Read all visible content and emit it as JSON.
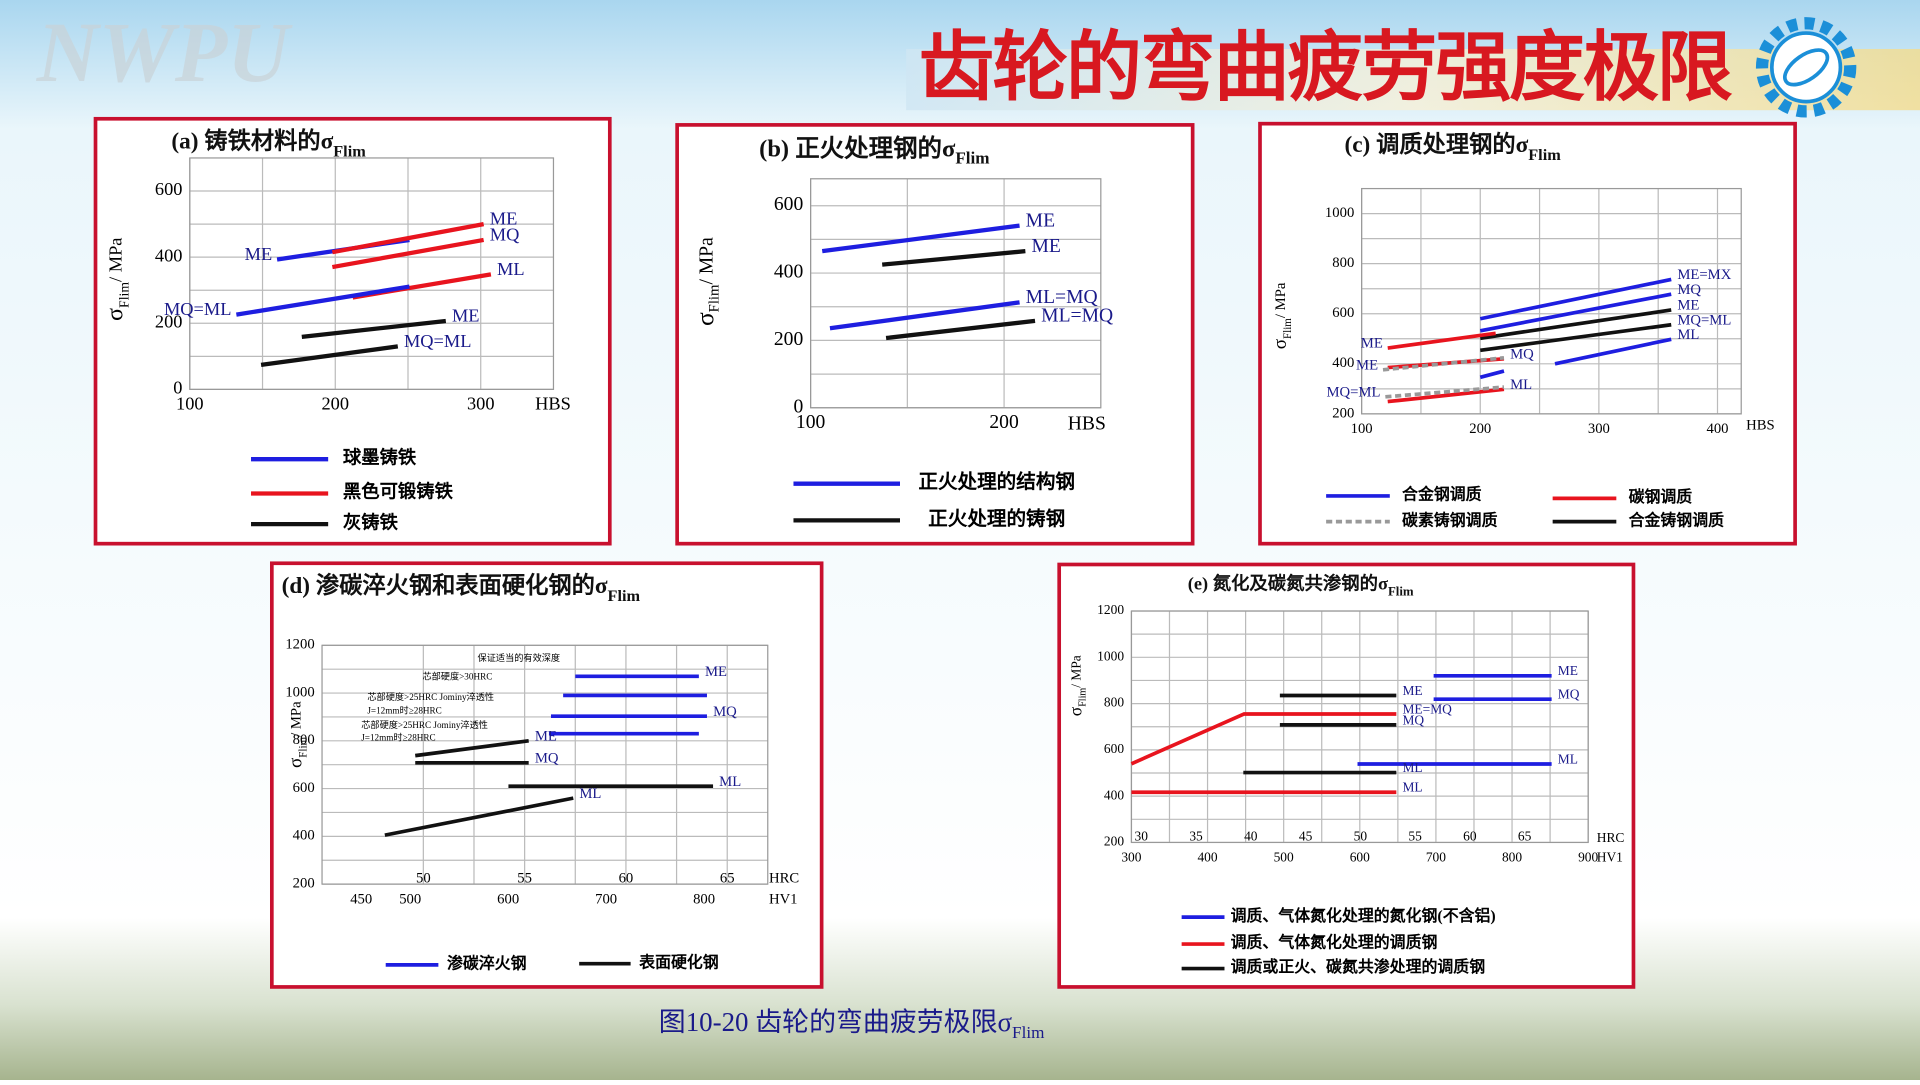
{
  "header": {
    "watermark": "NWPU",
    "title": "齿轮的弯曲疲劳强度极限"
  },
  "caption": {
    "text": "图10-20 齿轮的弯曲疲劳极限σ",
    "sub": "Flim"
  },
  "chart_data": [
    {
      "type": "line",
      "title": "(a)  铸铁材料的σ",
      "title_sub": "Flim",
      "ylabel": "σ",
      "ylabel_sub": "Flim",
      "ylabel_unit": "/ MPa",
      "xlabel": "HBS",
      "xlim": [
        100,
        350
      ],
      "xticks": [
        100,
        200,
        300
      ],
      "ylim": [
        0,
        700
      ],
      "yticks": [
        0,
        200,
        400,
        600
      ],
      "lines": [
        {
          "label": "ME",
          "color": "#1e1ee0",
          "x": [
            160,
            251
          ],
          "values": [
            393,
            452
          ],
          "label_at": "start"
        },
        {
          "label": "ME",
          "color": "#e8141e",
          "x": [
            198,
            302
          ],
          "values": [
            415,
            500
          ]
        },
        {
          "label": "MQ",
          "color": "#e8141e",
          "x": [
            198,
            302
          ],
          "values": [
            370,
            452
          ]
        },
        {
          "label": "ML",
          "color": "#e8141e",
          "x": [
            212,
            307
          ],
          "values": [
            278,
            348
          ]
        },
        {
          "label": "MQ=ML",
          "color": "#1e1ee0",
          "x": [
            132,
            251
          ],
          "values": [
            226,
            311
          ],
          "label_at": "start"
        },
        {
          "label": "ME",
          "color": "#111111",
          "x": [
            177,
            276
          ],
          "values": [
            159,
            207
          ]
        },
        {
          "label": "MQ=ML",
          "color": "#111111",
          "x": [
            149,
            243
          ],
          "values": [
            74,
            130
          ]
        }
      ],
      "legend": [
        {
          "name": "球墨铸铁",
          "color": "#1e1ee0"
        },
        {
          "name": "黑色可锻铸铁",
          "color": "#e8141e"
        },
        {
          "name": "灰铸铁",
          "color": "#111111"
        }
      ]
    },
    {
      "type": "line",
      "title": "(b) 正火处理钢的σ",
      "title_sub": "Flim",
      "ylabel": "σ",
      "ylabel_sub": "Flim",
      "ylabel_unit": "/ MPa",
      "xlabel": "HBS",
      "xlim": [
        100,
        250
      ],
      "xticks": [
        100,
        200
      ],
      "ylim": [
        0,
        680
      ],
      "yticks": [
        0,
        200,
        400,
        600
      ],
      "lines": [
        {
          "label": "ME",
          "color": "#1e1ee0",
          "x": [
            106,
            208
          ],
          "values": [
            465,
            541
          ]
        },
        {
          "label": "ME",
          "color": "#111111",
          "x": [
            137,
            211
          ],
          "values": [
            425,
            465
          ]
        },
        {
          "label": "ML=MQ",
          "color": "#1e1ee0",
          "x": [
            110,
            208
          ],
          "values": [
            236,
            313
          ]
        },
        {
          "label": "ML=MQ",
          "color": "#111111",
          "x": [
            139,
            216
          ],
          "values": [
            207,
            258
          ]
        }
      ],
      "legend": [
        {
          "name": "正火处理的结构钢",
          "color": "#1e1ee0"
        },
        {
          "name": "正火处理的铸钢",
          "color": "#111111"
        }
      ]
    },
    {
      "type": "line",
      "title": "(c)  调质处理钢的σ",
      "title_sub": "Flim",
      "ylabel": "σ",
      "ylabel_sub": "Flim",
      "ylabel_unit": "/ MPa",
      "xlabel": "HBS",
      "xlim": [
        100,
        420
      ],
      "xticks": [
        100,
        200,
        300,
        400
      ],
      "ylim": [
        200,
        1100
      ],
      "yticks": [
        200,
        400,
        600,
        800,
        1000
      ],
      "lines": [
        {
          "label": "ME=MX",
          "color": "#1e1ee0",
          "x": [
            200,
            361
          ],
          "values": [
            580,
            737
          ]
        },
        {
          "label": "MQ",
          "color": "#1e1ee0",
          "x": [
            200,
            361
          ],
          "values": [
            532,
            678
          ]
        },
        {
          "label": "ME",
          "color": "#111111",
          "x": [
            200,
            361
          ],
          "values": [
            502,
            615
          ]
        },
        {
          "label": "MQ=ML",
          "color": "#111111",
          "x": [
            200,
            361
          ],
          "values": [
            454,
            556
          ]
        },
        {
          "label": "ML",
          "color": "#1e1ee0",
          "x": [
            263,
            361
          ],
          "values": [
            400,
            498
          ]
        },
        {
          "color": "#1e1ee0",
          "x": [
            200,
            220
          ],
          "values": [
            346,
            371
          ]
        },
        {
          "label": "ME",
          "color": "#e8141e",
          "x": [
            122,
            213
          ],
          "values": [
            463,
            522
          ],
          "label_at": "start"
        },
        {
          "label": "MQ",
          "color": "#e8141e",
          "x": [
            122,
            220
          ],
          "values": [
            385,
            420
          ]
        },
        {
          "label": "ML",
          "color": "#e8141e",
          "x": [
            122,
            220
          ],
          "values": [
            249,
            298
          ]
        },
        {
          "label": "ME",
          "color": "#999999",
          "x": [
            118,
            220
          ],
          "values": [
            376,
            424
          ],
          "label_at": "start",
          "dash": true
        },
        {
          "label": "MQ=ML",
          "color": "#999999",
          "x": [
            120,
            220
          ],
          "values": [
            268,
            307
          ],
          "label_at": "start",
          "dash": true
        }
      ],
      "legend": [
        {
          "name": "合金钢调质",
          "color": "#1e1ee0"
        },
        {
          "name": "碳钢调质",
          "color": "#e8141e"
        },
        {
          "name": "碳素铸钢调质",
          "color": "#999999",
          "dash": true
        },
        {
          "name": "合金铸钢调质",
          "color": "#111111"
        }
      ]
    },
    {
      "type": "line",
      "title": "(d) 渗碳淬火钢和表面硬化钢的σ",
      "title_sub": "Flim",
      "ylabel": "σ",
      "ylabel_sub": "Flim",
      "ylabel_unit": "/ MPa",
      "xlabel": "HRC",
      "x2label": "HV1",
      "x2_row": "below",
      "xlim": [
        45,
        67
      ],
      "xticks": [
        50,
        55,
        60,
        65
      ],
      "x2lim": [
        410,
        865
      ],
      "x2ticks": [
        450,
        500,
        600,
        700,
        800
      ],
      "ylim": [
        200,
        1200
      ],
      "yticks": [
        200,
        400,
        600,
        800,
        1000,
        1200
      ],
      "lines": [
        {
          "label": "ME",
          "color": "#1e1ee0",
          "x": [
            57.5,
            63.6
          ],
          "values": [
            1070,
            1070
          ]
        },
        {
          "color": "#1e1ee0",
          "x": [
            56.9,
            64
          ],
          "values": [
            990,
            990
          ]
        },
        {
          "label": "MQ",
          "color": "#1e1ee0",
          "x": [
            56.3,
            64
          ],
          "values": [
            903,
            903
          ]
        },
        {
          "color": "#1e1ee0",
          "x": [
            56.2,
            63.6
          ],
          "values": [
            830,
            830
          ]
        },
        {
          "label": "ME",
          "color": "#111111",
          "x": [
            49.6,
            55.2
          ],
          "values": [
            738,
            800
          ]
        },
        {
          "label": "MQ",
          "color": "#111111",
          "x": [
            49.6,
            55.2
          ],
          "values": [
            708,
            708
          ]
        },
        {
          "label": "ML",
          "color": "#111111",
          "x": [
            54.2,
            64.3
          ],
          "values": [
            610,
            610
          ]
        },
        {
          "label": "ML",
          "color": "#111111",
          "x": [
            48.1,
            57.4
          ],
          "values": [
            405,
            560
          ]
        }
      ],
      "annotations": [
        "保证适当的有效深度",
        "芯部硬度>30HRC",
        "芯部硬度>25HRC Jominy淬透性",
        "J=12mm时≥28HRC",
        "芯部硬度>25HRC Jominy淬透性",
        "J=12mm时≥28HRC"
      ],
      "legend": [
        {
          "name": "渗碳淬火钢",
          "color": "#1e1ee0"
        },
        {
          "name": "表面硬化钢",
          "color": "#111111"
        }
      ]
    },
    {
      "type": "line",
      "title": "(e)  氮化及碳氮共渗钢的σ",
      "title_sub": "Flim",
      "ylabel": "σ",
      "ylabel_sub": "Flim",
      "ylabel_unit": "/ MPa",
      "xlabel": "HV1",
      "x2label": "HRC",
      "x2_row": "above",
      "xlim": [
        300,
        900
      ],
      "xticks": [
        300,
        400,
        500,
        600,
        700,
        800,
        900
      ],
      "x2lim": [
        29.1,
        70.8
      ],
      "x2ticks": [
        30,
        35,
        40,
        45,
        50,
        55,
        60,
        65
      ],
      "ylim": [
        200,
        1200
      ],
      "yticks": [
        200,
        400,
        600,
        800,
        1000,
        1200
      ],
      "lines": [
        {
          "label": "ME",
          "color": "#1e1ee0",
          "x": [
            697,
            852
          ],
          "values": [
            920,
            920
          ]
        },
        {
          "label": "MQ",
          "color": "#1e1ee0",
          "x": [
            697,
            852
          ],
          "values": [
            819,
            819
          ]
        },
        {
          "label": "ML",
          "color": "#1e1ee0",
          "x": [
            597,
            852
          ],
          "values": [
            539,
            539
          ]
        },
        {
          "label": "ME",
          "color": "#111111",
          "x": [
            495,
            648
          ],
          "values": [
            835,
            835
          ]
        },
        {
          "label": "ME=MQ",
          "color": "#e8141e",
          "x": [
            300,
            448,
            648
          ],
          "values": [
            540,
            755,
            755
          ]
        },
        {
          "label": "MQ",
          "color": "#111111",
          "x": [
            495,
            648
          ],
          "values": [
            708,
            708
          ]
        },
        {
          "label": "ML",
          "color": "#111111",
          "x": [
            447,
            648
          ],
          "values": [
            502,
            502
          ]
        },
        {
          "label": "ML",
          "color": "#e8141e",
          "x": [
            300,
            648
          ],
          "values": [
            417,
            417
          ]
        }
      ],
      "legend": [
        {
          "name": "调质、气体氮化处理的氮化钢(不含铝)",
          "color": "#1e1ee0"
        },
        {
          "name": "调质、气体氮化处理的调质钢",
          "color": "#e8141e"
        },
        {
          "name": "调质或正火、碳氮共渗处理的调质钢",
          "color": "#111111"
        }
      ]
    }
  ]
}
